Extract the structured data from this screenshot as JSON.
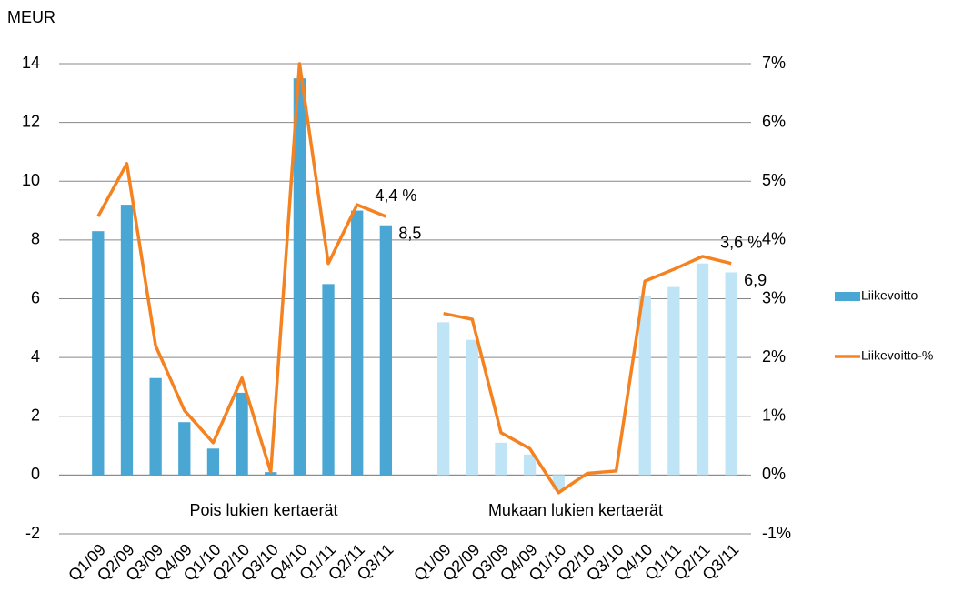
{
  "chart_data": {
    "type": "bar-line",
    "y_label": "MEUR",
    "annotations": [
      "Pois lukien kertaerät",
      "Mukaan lukien kertaerät"
    ],
    "categories": [
      "Q1/09",
      "Q2/09",
      "Q3/09",
      "Q4/09",
      "Q1/10",
      "Q2/10",
      "Q3/10",
      "Q4/10",
      "Q1/11",
      "Q2/11",
      "Q3/11",
      null,
      "Q1/09",
      "Q2/09",
      "Q3/09",
      "Q4/09",
      "Q1/10",
      "Q2/10",
      "Q3/10",
      "Q4/10",
      "Q1/11",
      "Q2/11",
      "Q3/11"
    ],
    "ylim": [
      -2,
      14
    ],
    "yticks": [
      -2,
      0,
      2,
      4,
      6,
      8,
      10,
      12,
      14
    ],
    "y2lim": [
      -1,
      7
    ],
    "y2ticks": [
      {
        "value": -1,
        "label": "-1%"
      },
      {
        "value": 0,
        "label": "0%"
      },
      {
        "value": 1,
        "label": "1%"
      },
      {
        "value": 2,
        "label": "2%"
      },
      {
        "value": 3,
        "label": "3%"
      },
      {
        "value": 4,
        "label": "4%"
      },
      {
        "value": 5,
        "label": "5%"
      },
      {
        "value": 6,
        "label": "6%"
      },
      {
        "value": 7,
        "label": "7%"
      }
    ],
    "grid": true,
    "legend": "right",
    "series": [
      {
        "name": "Liikevoitto",
        "kind": "bar",
        "color": "#4aa6d3",
        "colors": [
          "#4aa6d3",
          "#4aa6d3",
          "#4aa6d3",
          "#4aa6d3",
          "#4aa6d3",
          "#4aa6d3",
          "#4aa6d3",
          "#4aa6d3",
          "#4aa6d3",
          "#4aa6d3",
          "#4aa6d3",
          null,
          "#bfe4f6",
          "#bfe4f6",
          "#bfe4f6",
          "#bfe4f6",
          "#bfe4f6",
          "#bfe4f6",
          "#bfe4f6",
          "#bfe4f6",
          "#bfe4f6",
          "#bfe4f6",
          "#bfe4f6"
        ],
        "values": [
          8.3,
          9.2,
          3.3,
          1.8,
          0.9,
          2.8,
          0.1,
          13.5,
          6.5,
          9.0,
          8.5,
          null,
          5.2,
          4.6,
          1.1,
          0.7,
          -0.5,
          0,
          0,
          6.1,
          6.4,
          7.2,
          6.9
        ],
        "value_labels": [
          null,
          null,
          null,
          null,
          null,
          null,
          null,
          null,
          null,
          null,
          "8,5",
          null,
          null,
          null,
          null,
          null,
          null,
          null,
          null,
          null,
          null,
          null,
          "6,9"
        ]
      },
      {
        "name": "Liikevoitto-%",
        "kind": "line",
        "axis": "y2",
        "color": "#f58220",
        "values": [
          4.4,
          5.3,
          2.2,
          1.1,
          0.55,
          1.65,
          0.05,
          7.0,
          3.6,
          4.6,
          4.4,
          null,
          2.75,
          2.65,
          0.72,
          0.45,
          -0.3,
          0.03,
          0.07,
          3.3,
          3.5,
          3.72,
          3.6
        ],
        "value_labels": [
          null,
          null,
          null,
          null,
          null,
          null,
          null,
          null,
          null,
          null,
          "4,4 %",
          null,
          null,
          null,
          null,
          null,
          null,
          null,
          null,
          null,
          null,
          null,
          "3,6 %"
        ]
      }
    ]
  }
}
